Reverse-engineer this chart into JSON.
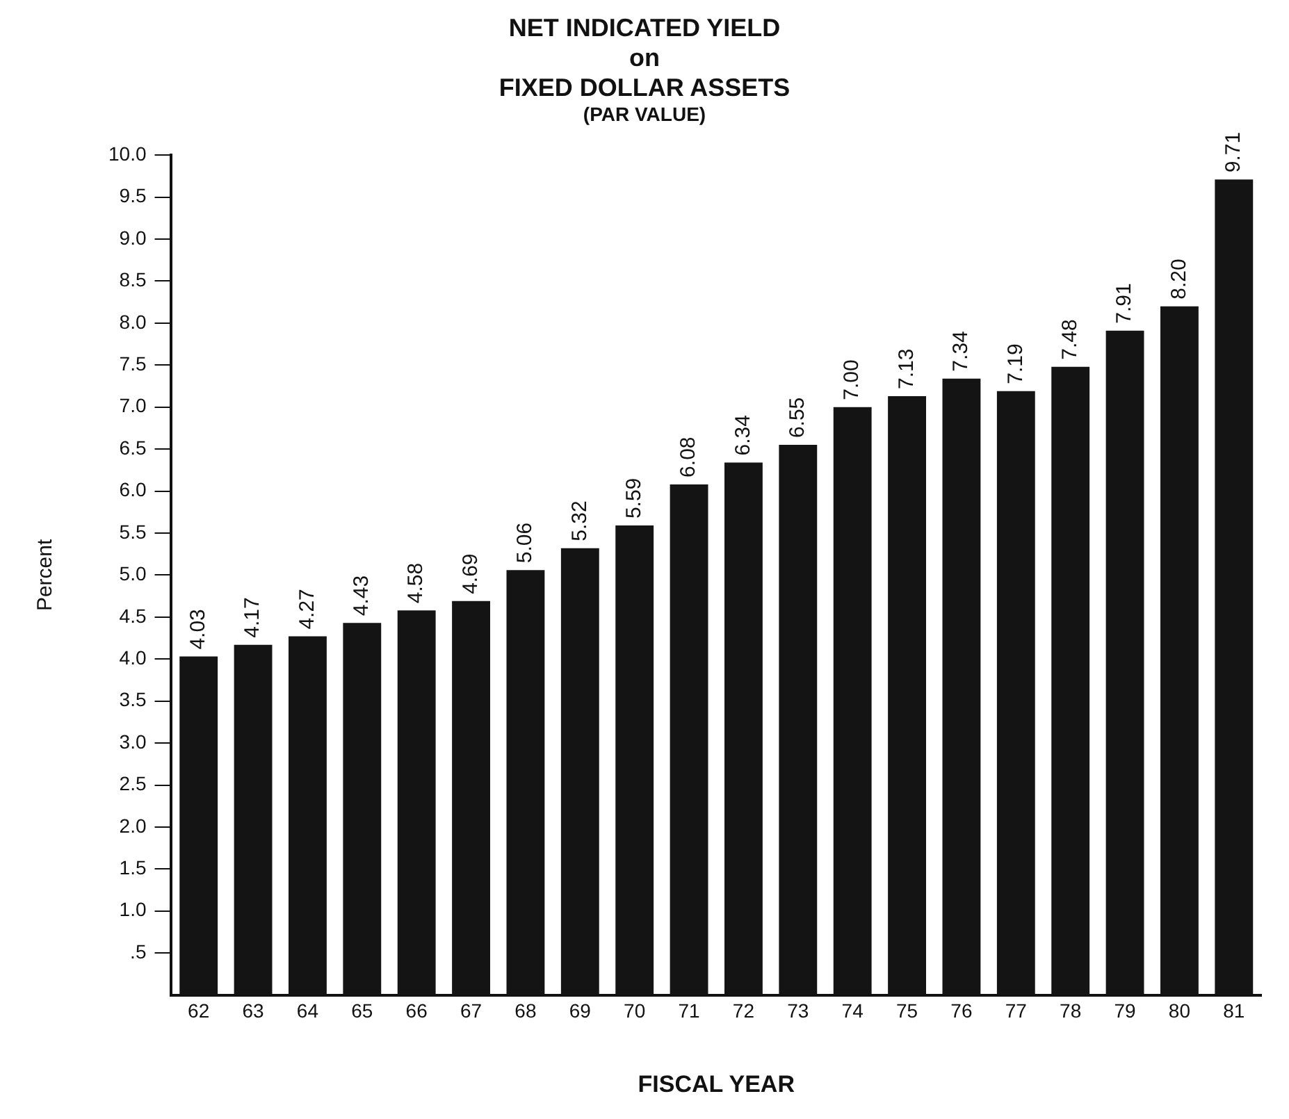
{
  "chart_data": {
    "type": "bar",
    "title": "NET INDICATED YIELD\non\nFIXED DOLLAR ASSETS",
    "subtitle": "(PAR VALUE)",
    "xlabel": "FISCAL YEAR",
    "ylabel": "Percent",
    "categories": [
      "62",
      "63",
      "64",
      "65",
      "66",
      "67",
      "68",
      "69",
      "70",
      "71",
      "72",
      "73",
      "74",
      "75",
      "76",
      "77",
      "78",
      "79",
      "80",
      "81"
    ],
    "values": [
      4.03,
      4.17,
      4.27,
      4.43,
      4.58,
      4.69,
      5.06,
      5.32,
      5.59,
      6.08,
      6.34,
      6.55,
      7.0,
      7.13,
      7.34,
      7.19,
      7.48,
      7.91,
      8.2,
      9.71
    ],
    "value_labels": [
      "4.03",
      "4.17",
      "4.27",
      "4.43",
      "4.58",
      "4.69",
      "5.06",
      "5.32",
      "5.59",
      "6.08",
      "6.34",
      "6.55",
      "7.00",
      "7.13",
      "7.34",
      "7.19",
      "7.48",
      "7.91",
      "8.20",
      "9.71"
    ],
    "color": "#141414",
    "ylim": [
      0,
      10
    ],
    "yticks": [
      {
        "value": 0.5,
        "label": ".5"
      },
      {
        "value": 1,
        "label": "1.0"
      },
      {
        "value": 1.5,
        "label": "1.5"
      },
      {
        "value": 2,
        "label": "2.0"
      },
      {
        "value": 2.5,
        "label": "2.5"
      },
      {
        "value": 3,
        "label": "3.0"
      },
      {
        "value": 3.5,
        "label": "3.5"
      },
      {
        "value": 4,
        "label": "4.0"
      },
      {
        "value": 4.5,
        "label": "4.5"
      },
      {
        "value": 5,
        "label": "5.0"
      },
      {
        "value": 5.5,
        "label": "5.5"
      },
      {
        "value": 6,
        "label": "6.0"
      },
      {
        "value": 6.5,
        "label": "6.5"
      },
      {
        "value": 7,
        "label": "7.0"
      },
      {
        "value": 7.5,
        "label": "7.5"
      },
      {
        "value": 8,
        "label": "8.0"
      },
      {
        "value": 8.5,
        "label": "8.5"
      },
      {
        "value": 9,
        "label": "9.0"
      },
      {
        "value": 9.5,
        "label": "9.5"
      },
      {
        "value": 10,
        "label": "10.0"
      }
    ],
    "grid": false,
    "legend": false
  }
}
